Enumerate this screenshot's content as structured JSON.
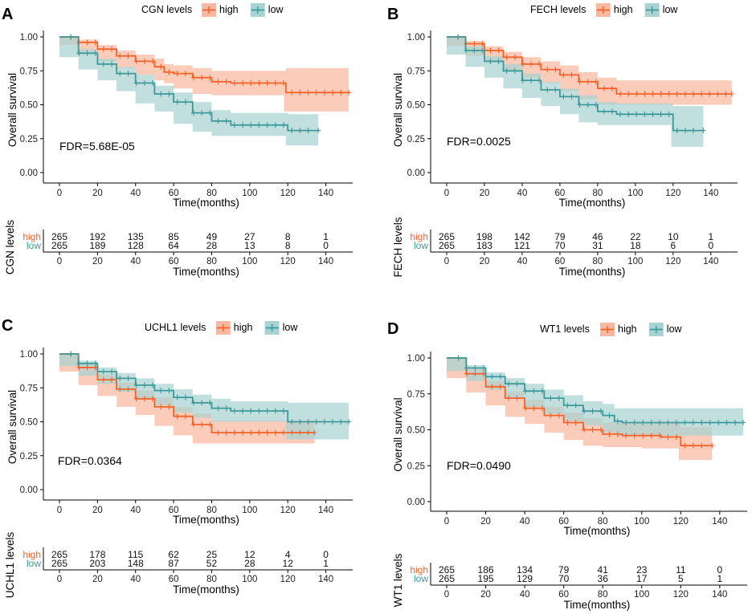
{
  "colors": {
    "high": "#F2632A",
    "low": "#3E9A9A",
    "high_ci": "#F9B9A0",
    "low_ci": "#A9D3D3"
  },
  "common": {
    "ylabel": "Overall survival",
    "xlabel": "Time(months)",
    "x_ticks": [
      0,
      20,
      40,
      60,
      80,
      100,
      120,
      140
    ],
    "y_ticks": [
      0.0,
      0.25,
      0.5,
      0.75,
      1.0
    ],
    "y_tick_labels": [
      "0.00",
      "0.25",
      "0.50",
      "0.75",
      "1.00"
    ],
    "legend_high": "high",
    "legend_low": "low",
    "risk_high_label": "high",
    "risk_low_label": "low",
    "risk_times": [
      0,
      20,
      40,
      60,
      80,
      100,
      120,
      140
    ]
  },
  "chart_data": [
    {
      "panel": "A",
      "type": "line",
      "gene": "CGN",
      "legend_title": "CGN levels",
      "fdr": "FDR=5.68E-05",
      "xlim": [
        0,
        152
      ],
      "ylim": [
        0,
        1
      ],
      "risk_title": "CGN levels",
      "risk_high": [
        265,
        192,
        135,
        85,
        49,
        27,
        8,
        1
      ],
      "risk_low": [
        265,
        189,
        128,
        64,
        28,
        13,
        8,
        0
      ],
      "series": [
        {
          "name": "high",
          "end": 152,
          "x": [
            0,
            10,
            20,
            30,
            40,
            50,
            55,
            60,
            70,
            80,
            90,
            100,
            110,
            118,
            119,
            152
          ],
          "y": [
            1.0,
            0.96,
            0.91,
            0.86,
            0.82,
            0.78,
            0.74,
            0.73,
            0.7,
            0.67,
            0.66,
            0.66,
            0.66,
            0.66,
            0.59,
            0.59
          ],
          "ci_lo": [
            1.0,
            0.94,
            0.88,
            0.82,
            0.77,
            0.72,
            0.68,
            0.66,
            0.62,
            0.58,
            0.57,
            0.57,
            0.57,
            0.57,
            0.45,
            0.45
          ],
          "ci_hi": [
            1.0,
            0.98,
            0.94,
            0.9,
            0.87,
            0.84,
            0.8,
            0.79,
            0.77,
            0.75,
            0.75,
            0.75,
            0.75,
            0.75,
            0.77,
            0.77
          ]
        },
        {
          "name": "low",
          "end": 136,
          "x": [
            0,
            10,
            20,
            30,
            40,
            50,
            60,
            70,
            80,
            90,
            100,
            110,
            119,
            120,
            136
          ],
          "y": [
            1.0,
            0.88,
            0.8,
            0.73,
            0.66,
            0.58,
            0.52,
            0.44,
            0.38,
            0.35,
            0.35,
            0.35,
            0.35,
            0.31,
            0.31
          ],
          "ci_lo": [
            1.0,
            0.85,
            0.76,
            0.68,
            0.6,
            0.51,
            0.45,
            0.36,
            0.3,
            0.27,
            0.27,
            0.27,
            0.27,
            0.2,
            0.2
          ],
          "ci_hi": [
            1.0,
            0.91,
            0.84,
            0.78,
            0.72,
            0.64,
            0.59,
            0.52,
            0.46,
            0.44,
            0.44,
            0.44,
            0.44,
            0.43,
            0.43
          ]
        }
      ]
    },
    {
      "panel": "B",
      "type": "line",
      "gene": "FECH",
      "legend_title": "FECH levels",
      "fdr": "FDR=0.0025",
      "xlim": [
        0,
        152
      ],
      "ylim": [
        0,
        1
      ],
      "risk_title": "FECH levels",
      "risk_high": [
        265,
        198,
        142,
        79,
        46,
        22,
        10,
        1
      ],
      "risk_low": [
        265,
        183,
        121,
        70,
        31,
        18,
        6,
        0
      ],
      "series": [
        {
          "name": "high",
          "end": 151,
          "x": [
            0,
            10,
            20,
            30,
            40,
            50,
            60,
            70,
            80,
            90,
            100,
            110,
            120,
            130,
            151
          ],
          "y": [
            1.0,
            0.95,
            0.9,
            0.85,
            0.8,
            0.76,
            0.72,
            0.67,
            0.62,
            0.58,
            0.58,
            0.58,
            0.58,
            0.58,
            0.58
          ],
          "ci_lo": [
            1.0,
            0.93,
            0.86,
            0.81,
            0.75,
            0.7,
            0.66,
            0.6,
            0.54,
            0.5,
            0.5,
            0.5,
            0.5,
            0.5,
            0.5
          ],
          "ci_hi": [
            1.0,
            0.97,
            0.93,
            0.89,
            0.85,
            0.82,
            0.79,
            0.74,
            0.7,
            0.68,
            0.68,
            0.68,
            0.68,
            0.68,
            0.68
          ]
        },
        {
          "name": "low",
          "end": 136,
          "x": [
            0,
            10,
            20,
            30,
            40,
            50,
            60,
            70,
            80,
            90,
            100,
            110,
            119,
            120,
            136
          ],
          "y": [
            1.0,
            0.9,
            0.82,
            0.75,
            0.68,
            0.61,
            0.56,
            0.5,
            0.45,
            0.43,
            0.43,
            0.43,
            0.43,
            0.31,
            0.31
          ],
          "ci_lo": [
            1.0,
            0.87,
            0.78,
            0.7,
            0.62,
            0.55,
            0.49,
            0.43,
            0.37,
            0.35,
            0.35,
            0.35,
            0.35,
            0.19,
            0.19
          ],
          "ci_hi": [
            1.0,
            0.93,
            0.86,
            0.8,
            0.73,
            0.67,
            0.62,
            0.57,
            0.52,
            0.51,
            0.51,
            0.51,
            0.51,
            0.49,
            0.49
          ]
        }
      ]
    },
    {
      "panel": "C",
      "type": "line",
      "gene": "UCHL1",
      "legend_title": "UCHL1 levels",
      "fdr": "FDR=0.0364",
      "xlim": [
        0,
        152
      ],
      "ylim": [
        0,
        1
      ],
      "risk_title": "UCHL1 levels",
      "risk_high": [
        265,
        178,
        115,
        62,
        25,
        12,
        4,
        0
      ],
      "risk_low": [
        265,
        203,
        148,
        87,
        52,
        28,
        12,
        1
      ],
      "series": [
        {
          "name": "high",
          "end": 134,
          "x": [
            0,
            10,
            20,
            30,
            40,
            50,
            60,
            70,
            80,
            90,
            100,
            110,
            120,
            134
          ],
          "y": [
            1.0,
            0.9,
            0.81,
            0.74,
            0.67,
            0.61,
            0.54,
            0.48,
            0.42,
            0.42,
            0.42,
            0.42,
            0.42,
            0.42
          ],
          "ci_lo": [
            1.0,
            0.87,
            0.77,
            0.69,
            0.61,
            0.55,
            0.47,
            0.4,
            0.34,
            0.34,
            0.34,
            0.34,
            0.34,
            0.34
          ],
          "ci_hi": [
            1.0,
            0.93,
            0.85,
            0.79,
            0.73,
            0.68,
            0.61,
            0.56,
            0.51,
            0.51,
            0.51,
            0.51,
            0.51,
            0.51
          ]
        },
        {
          "name": "low",
          "end": 152,
          "x": [
            0,
            10,
            20,
            30,
            40,
            50,
            60,
            70,
            80,
            90,
            100,
            110,
            119,
            120,
            152
          ],
          "y": [
            1.0,
            0.93,
            0.87,
            0.82,
            0.77,
            0.73,
            0.68,
            0.64,
            0.6,
            0.58,
            0.58,
            0.58,
            0.58,
            0.5,
            0.5
          ],
          "ci_lo": [
            1.0,
            0.91,
            0.84,
            0.78,
            0.72,
            0.67,
            0.62,
            0.57,
            0.53,
            0.5,
            0.5,
            0.5,
            0.5,
            0.37,
            0.37
          ],
          "ci_hi": [
            1.0,
            0.95,
            0.9,
            0.86,
            0.82,
            0.78,
            0.74,
            0.7,
            0.67,
            0.65,
            0.65,
            0.65,
            0.65,
            0.64,
            0.64
          ]
        }
      ]
    },
    {
      "panel": "D",
      "type": "line",
      "gene": "WT1",
      "legend_title": "WT1 levels",
      "fdr": "FDR=0.0490",
      "xlim": [
        0,
        152
      ],
      "ylim": [
        0,
        1
      ],
      "risk_title": "WT1 levels",
      "risk_high": [
        265,
        186,
        134,
        79,
        41,
        23,
        11,
        0
      ],
      "risk_low": [
        265,
        195,
        129,
        70,
        36,
        17,
        5,
        1
      ],
      "series": [
        {
          "name": "high",
          "end": 136,
          "x": [
            0,
            10,
            20,
            30,
            40,
            50,
            60,
            70,
            80,
            90,
            100,
            110,
            119,
            120,
            136
          ],
          "y": [
            1.0,
            0.89,
            0.8,
            0.72,
            0.65,
            0.6,
            0.55,
            0.5,
            0.47,
            0.46,
            0.46,
            0.45,
            0.45,
            0.39,
            0.39
          ],
          "ci_lo": [
            1.0,
            0.86,
            0.76,
            0.67,
            0.59,
            0.54,
            0.48,
            0.43,
            0.39,
            0.38,
            0.38,
            0.37,
            0.37,
            0.29,
            0.29
          ],
          "ci_hi": [
            1.0,
            0.92,
            0.84,
            0.77,
            0.71,
            0.66,
            0.62,
            0.58,
            0.55,
            0.55,
            0.55,
            0.55,
            0.55,
            0.52,
            0.52
          ]
        },
        {
          "name": "low",
          "end": 152,
          "x": [
            0,
            10,
            20,
            30,
            40,
            50,
            60,
            70,
            80,
            86,
            90,
            100,
            110,
            120,
            152
          ],
          "y": [
            1.0,
            0.93,
            0.87,
            0.82,
            0.77,
            0.72,
            0.67,
            0.63,
            0.6,
            0.56,
            0.55,
            0.55,
            0.55,
            0.55,
            0.55
          ],
          "ci_lo": [
            1.0,
            0.91,
            0.84,
            0.78,
            0.72,
            0.66,
            0.61,
            0.56,
            0.53,
            0.48,
            0.46,
            0.46,
            0.46,
            0.46,
            0.46
          ],
          "ci_hi": [
            1.0,
            0.95,
            0.9,
            0.86,
            0.82,
            0.78,
            0.74,
            0.7,
            0.68,
            0.65,
            0.65,
            0.65,
            0.65,
            0.65,
            0.65
          ]
        }
      ]
    }
  ]
}
